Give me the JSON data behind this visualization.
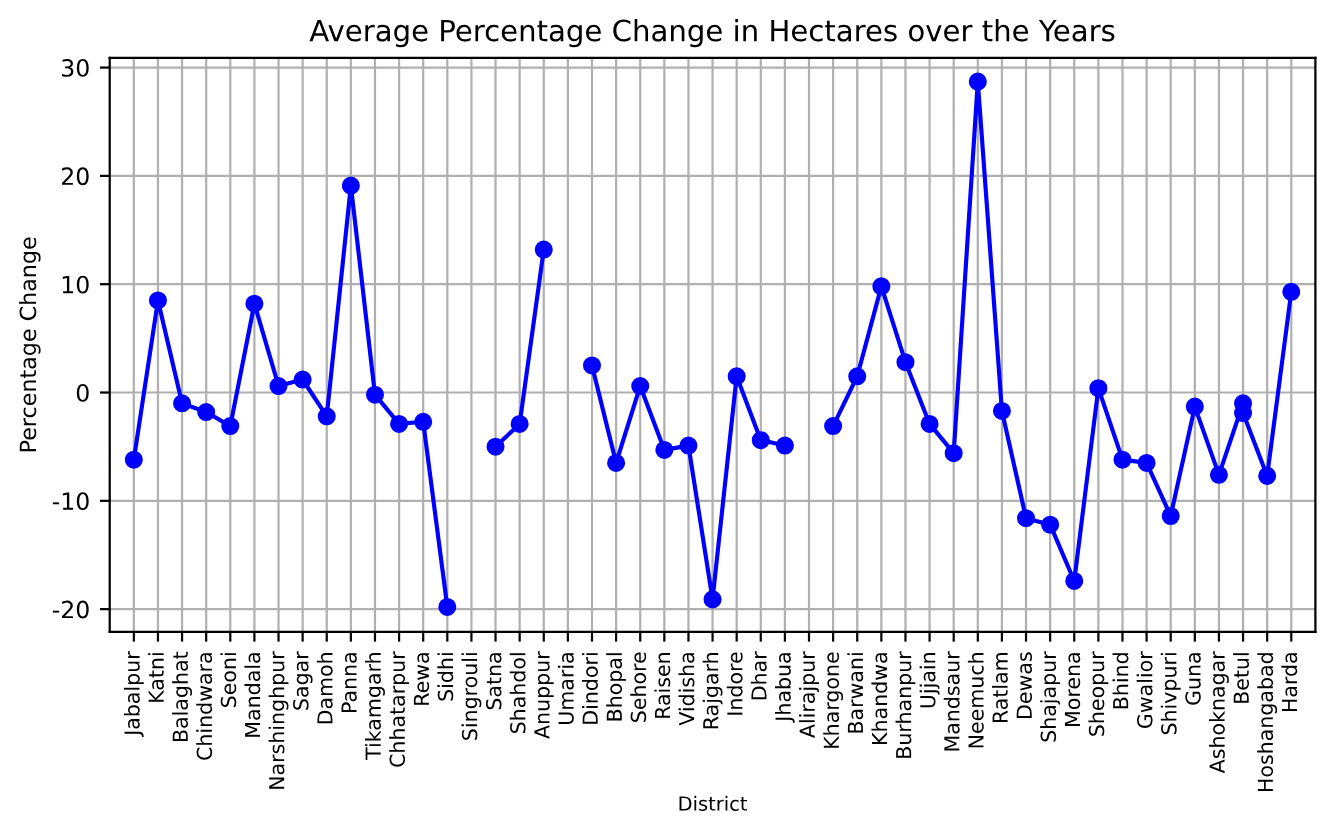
{
  "chart_data": {
    "type": "line",
    "title": "Average Percentage Change in Hectares over the Years",
    "xlabel": "District",
    "ylabel": "Percentage Change",
    "categories": [
      "Jabalpur",
      "Katni",
      "Balaghat",
      "Chindwara",
      "Seoni",
      "Mandala",
      "Narshinghpur",
      "Sagar",
      "Damoh",
      "Panna",
      "Tikamgarh",
      "Chhatarpur",
      "Rewa",
      "Sidhi",
      "Singrouli",
      "Satna",
      "Shahdol",
      "Anuppur",
      "Umaria",
      "Dindori",
      "Bhopal",
      "Sehore",
      "Raisen",
      "Vidisha",
      "Rajgarh",
      "Indore",
      "Dhar",
      "Jhabua",
      "Alirajpur",
      "Khargone",
      "Barwani",
      "Khandwa",
      "Burhanpur",
      "Ujjain",
      "Mandsaur",
      "Neemuch",
      "Ratlam",
      "Dewas",
      "Shajapur",
      "Morena",
      "Sheopur",
      "Bhind",
      "Gwalior",
      "Shivpuri",
      "Guna",
      "Ashoknagar",
      "Betul",
      "Hoshangabad",
      "Harda"
    ],
    "series": [
      {
        "color": "#0000ff",
        "x": [
          "Jabalpur",
          "Katni",
          "Balaghat",
          "Chindwara",
          "Seoni",
          "Mandala",
          "Narshinghpur",
          "Sagar",
          "Damoh",
          "Panna",
          "Tikamgarh",
          "Chhatarpur",
          "Rewa",
          "Sidhi",
          "Singrouli",
          "Satna",
          "Shahdol",
          "Anuppur",
          "Umaria",
          "Dindori",
          "Bhopal",
          "Sehore",
          "Raisen",
          "Vidisha",
          "Rajgarh",
          "Indore",
          "Dhar",
          "Jhabua",
          "Alirajpur",
          "Khargone",
          "Barwani",
          "Khandwa",
          "Burhanpur",
          "Ujjain",
          "Mandsaur",
          "Neemuch",
          "Ratlam",
          "Dewas",
          "Shajapur",
          "Morena",
          "Sheopur",
          "Bhind",
          "Gwalior",
          "Shivpuri",
          "Guna",
          "Ashoknagar",
          "Betul",
          "Betul",
          "Hoshangabad",
          "Harda"
        ],
        "values": [
          -6.2,
          8.5,
          -1.0,
          -1.8,
          -3.1,
          8.2,
          0.6,
          1.2,
          -2.2,
          19.1,
          -0.2,
          -2.9,
          -2.7,
          -19.8,
          null,
          -5.0,
          -2.9,
          13.2,
          null,
          2.5,
          -6.5,
          0.6,
          -5.3,
          -4.9,
          -19.1,
          1.5,
          -4.4,
          -4.9,
          null,
          -3.1,
          1.5,
          9.8,
          2.8,
          -2.9,
          -5.6,
          28.7,
          -1.7,
          -11.6,
          -12.2,
          -17.4,
          0.4,
          -6.2,
          -6.5,
          -11.4,
          -1.3,
          -7.6,
          -1.0,
          -1.9,
          -7.7,
          9.3
        ]
      }
    ],
    "ylim": [
      -22.1,
      30.9
    ],
    "yticks": [
      -20,
      -10,
      0,
      10,
      20,
      30
    ],
    "grid": true,
    "marker": "circle",
    "line_style": "solid"
  }
}
